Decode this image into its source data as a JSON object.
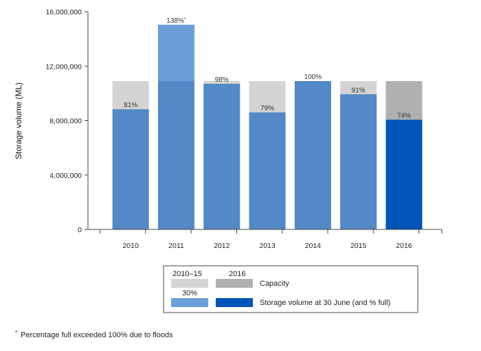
{
  "chart_data": {
    "type": "bar",
    "ylabel": "Storage volume (ML)",
    "ylim": [
      0,
      16000000
    ],
    "yticks": [
      0,
      4000000,
      8000000,
      12000000,
      16000000
    ],
    "ytick_labels": [
      "0",
      "4,000,000",
      "8,000,000",
      "12,000,000",
      "16,000,000"
    ],
    "categories": [
      "2010",
      "2011",
      "2012",
      "2013",
      "2014",
      "2015",
      "2016"
    ],
    "series": [
      {
        "name": "Capacity",
        "values": [
          10900000,
          10900000,
          10900000,
          10900000,
          10900000,
          10900000,
          10900000
        ]
      },
      {
        "name": "Storage volume at 30 June (and % full)",
        "values": [
          8830000,
          15040000,
          10700000,
          8600000,
          10900000,
          9930000,
          8060000
        ]
      }
    ],
    "labels": [
      "81%",
      "138%*",
      "98%",
      "79%",
      "100%",
      "91%",
      "74%"
    ],
    "colors": {
      "capacity_2010_15": "#d4d4d4",
      "capacity_2016": "#b0b0b0",
      "storage_2010_15": "#5289c6",
      "storage_2011_excess": "#6a9fd8",
      "storage_2016": "#0055b8"
    },
    "grid": false,
    "legend": {
      "placement": "bottom",
      "col_header_a": "2010–15",
      "col_header_b": "2016",
      "row1_label": "Capacity",
      "row2_label": "Storage volume at 30 June (and % full)",
      "row2_note": "30%"
    },
    "footnote_marker": "*",
    "footnote": "Percentage full exceeded 100% due to floods"
  }
}
